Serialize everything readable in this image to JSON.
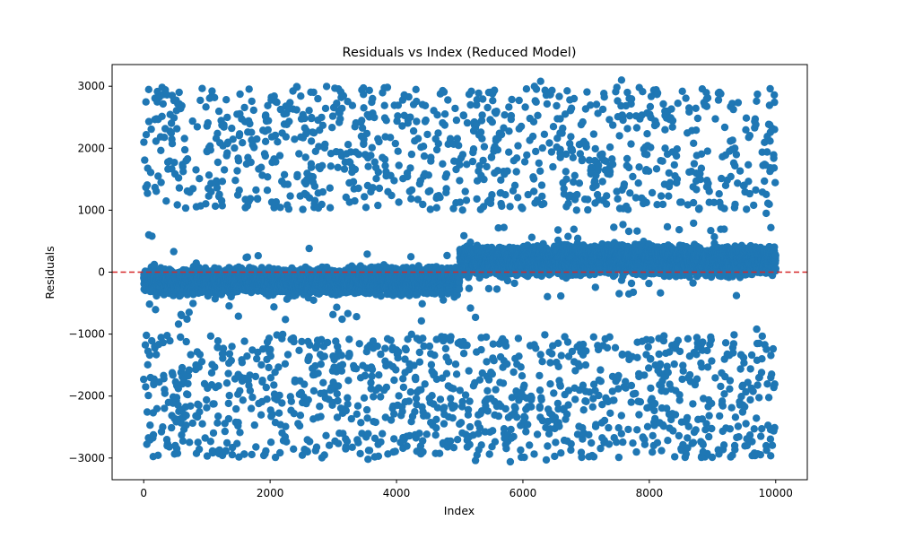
{
  "chart_data": {
    "type": "scatter",
    "title": "Residuals vs Index (Reduced Model)",
    "xlabel": "Index",
    "ylabel": "Residuals",
    "xlim": [
      -500,
      10500
    ],
    "ylim": [
      -3350,
      3350
    ],
    "x_ticks": [
      0,
      2000,
      4000,
      6000,
      8000,
      10000
    ],
    "x_tick_labels": [
      "0",
      "2000",
      "4000",
      "6000",
      "8000",
      "10000"
    ],
    "y_ticks": [
      -3000,
      -2000,
      -1000,
      0,
      1000,
      2000,
      3000
    ],
    "y_tick_labels": [
      "−3000",
      "−2000",
      "−1000",
      "0",
      "1000",
      "2000",
      "3000"
    ],
    "grid": false,
    "legend": "none",
    "point_color": "#1f77b4",
    "reference_line": {
      "y": 0,
      "color": "#d62728",
      "style": "dashed"
    },
    "n_points": 10000,
    "segments": [
      {
        "x_range": [
          0,
          5000
        ],
        "core_center": -200,
        "core_range": [
          -420,
          130
        ],
        "band_share": 0.2
      },
      {
        "x_range": [
          5000,
          10000
        ],
        "core_center": 200,
        "core_range": [
          -130,
          500
        ],
        "band_share": 0.2
      }
    ],
    "outlier_bands": [
      {
        "y_range": [
          1000,
          3000
        ]
      },
      {
        "y_range": [
          -3000,
          -1000
        ]
      }
    ],
    "points_sample": [
      {
        "x": 550,
        "y": -840
      },
      {
        "x": 600,
        "y": -700
      },
      {
        "x": 4740,
        "y": -450
      },
      {
        "x": 80,
        "y": 600
      },
      {
        "x": 130,
        "y": 580
      },
      {
        "x": 5170,
        "y": -580
      },
      {
        "x": 5250,
        "y": -730
      },
      {
        "x": 5700,
        "y": 720
      },
      {
        "x": 6850,
        "y": 1000
      },
      {
        "x": 8700,
        "y": 790
      },
      {
        "x": 9850,
        "y": 950
      },
      {
        "x": 9700,
        "y": -920
      },
      {
        "x": 7560,
        "y": 3100
      },
      {
        "x": 6280,
        "y": 3080
      },
      {
        "x": 5460,
        "y": 2900
      },
      {
        "x": 3550,
        "y": -3020
      },
      {
        "x": 5250,
        "y": -3040
      },
      {
        "x": 5800,
        "y": -3060
      },
      {
        "x": 6370,
        "y": -3030
      },
      {
        "x": 1900,
        "y": -2960
      },
      {
        "x": 8850,
        "y": -2900
      }
    ]
  }
}
